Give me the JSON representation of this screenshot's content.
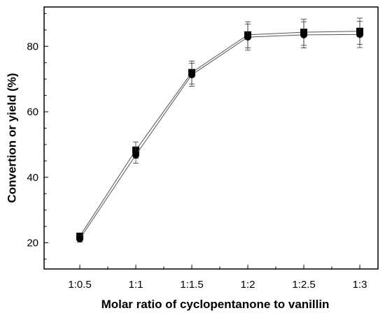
{
  "chart_data": {
    "type": "line",
    "title": "",
    "xlabel": "Molar ratio of cyclopentanone to vanillin",
    "ylabel": "Convertion or yield (%)",
    "categories": [
      "1:0.5",
      "1:1",
      "1:1.5",
      "1:2",
      "1:2.5",
      "1:3"
    ],
    "ylim": [
      12,
      92
    ],
    "yticks": [
      20,
      40,
      60,
      80
    ],
    "grid": false,
    "series": [
      {
        "marker": "square",
        "color": "#000000",
        "values": [
          22.0,
          48.3,
          72.0,
          83.5,
          84.3,
          84.6
        ],
        "errors": [
          1.0,
          2.5,
          3.5,
          4.0,
          4.0,
          4.0
        ]
      },
      {
        "marker": "circle",
        "color": "#000000",
        "values": [
          21.2,
          46.8,
          71.3,
          82.8,
          83.5,
          83.6
        ],
        "errors": [
          1.0,
          2.5,
          3.5,
          4.0,
          4.0,
          4.0
        ]
      }
    ]
  }
}
